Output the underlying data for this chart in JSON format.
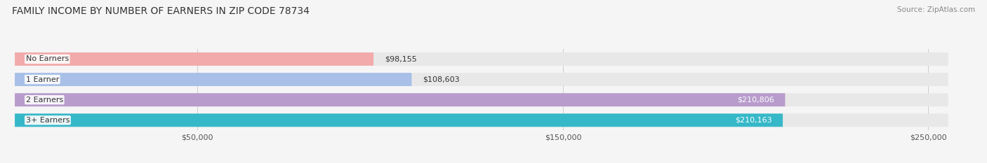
{
  "title": "FAMILY INCOME BY NUMBER OF EARNERS IN ZIP CODE 78734",
  "source": "Source: ZipAtlas.com",
  "categories": [
    "No Earners",
    "1 Earner",
    "2 Earners",
    "3+ Earners"
  ],
  "values": [
    98155,
    108603,
    210806,
    210163
  ],
  "bar_colors": [
    "#f2aaaa",
    "#a8c0e8",
    "#b89ccc",
    "#36b8c8"
  ],
  "bar_bg_color": "#e8e8e8",
  "label_colors": [
    "#444444",
    "#444444",
    "#ffffff",
    "#ffffff"
  ],
  "x_ticks": [
    50000,
    150000,
    250000
  ],
  "x_tick_labels": [
    "$50,000",
    "$150,000",
    "$250,000"
  ],
  "xlim": [
    0,
    262000
  ],
  "background_color": "#f5f5f5",
  "title_fontsize": 10,
  "source_fontsize": 7.5,
  "bar_label_fontsize": 8,
  "cat_label_fontsize": 8,
  "tick_fontsize": 8,
  "bar_height": 0.65,
  "value_threshold": 170000
}
